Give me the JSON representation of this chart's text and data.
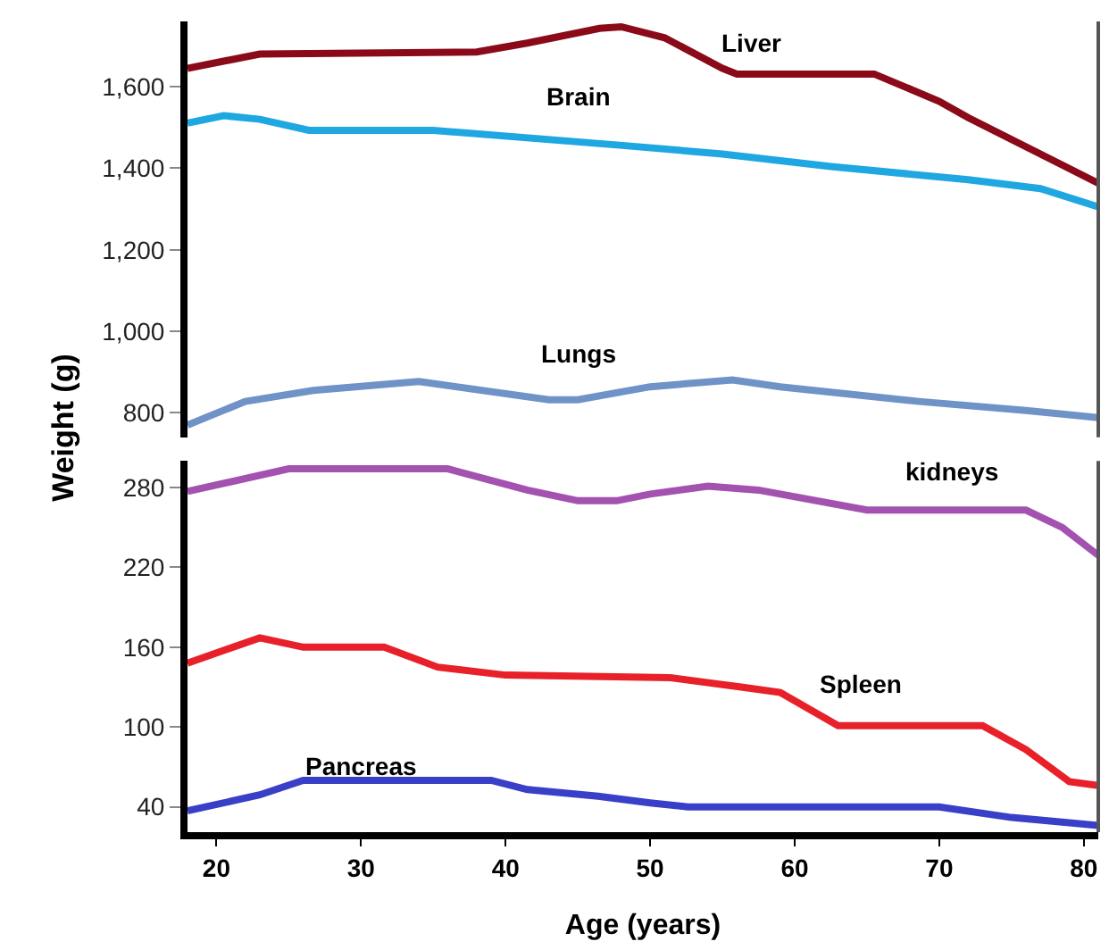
{
  "chart_data": [
    {
      "type": "line",
      "ylabel": "Weight (g)",
      "xlim": [
        18,
        81
      ],
      "ylim": [
        740,
        1760
      ],
      "yticks": [
        800,
        {
          "value": 1000,
          "label": "1,000"
        },
        {
          "value": 1200,
          "label": "1,200"
        },
        {
          "value": 1400,
          "label": "1,400"
        },
        {
          "value": 1600,
          "label": "1,600"
        }
      ],
      "tick_labels": "y",
      "legend": false,
      "marker": "none",
      "line_style": "solid",
      "series": [
        {
          "name": "Liver",
          "color": "#8b0a1a",
          "x": [
            18,
            23,
            38,
            41.5,
            46.5,
            48,
            51,
            55,
            56,
            65.5,
            70,
            72,
            78.5,
            81
          ],
          "values": [
            1645,
            1680,
            1685,
            1707,
            1743,
            1747,
            1720,
            1645,
            1631,
            1631,
            1564,
            1524,
            1408,
            1363
          ]
        },
        {
          "name": "Brain",
          "color": "#1ea7e1",
          "x": [
            18,
            20.5,
            23,
            26.4,
            35,
            47.7,
            55,
            62.5,
            72,
            77,
            81
          ],
          "values": [
            1511,
            1529,
            1520,
            1493,
            1493,
            1457,
            1435,
            1404,
            1372,
            1350,
            1305
          ]
        },
        {
          "name": "Lungs",
          "color": "#6f93c6",
          "x": [
            18,
            22,
            26.7,
            34,
            43,
            45,
            50,
            55.7,
            59,
            68.6,
            76,
            81
          ],
          "values": [
            770,
            828,
            855,
            877,
            832,
            832,
            864,
            881,
            864,
            828,
            806,
            788
          ]
        }
      ]
    },
    {
      "type": "line",
      "xlabel": "Age (years)",
      "xlim": [
        18,
        81
      ],
      "xticks": [
        20,
        30,
        40,
        50,
        60,
        70,
        80
      ],
      "ylim": [
        21,
        300
      ],
      "yticks": [
        40,
        100,
        160,
        220,
        280
      ],
      "legend": false,
      "marker": "none",
      "line_style": "solid",
      "series": [
        {
          "name": "kidneys",
          "color": "#a352b0",
          "x": [
            18,
            25,
            36,
            41.5,
            45,
            47.7,
            50,
            54,
            57.5,
            65,
            76,
            78.5,
            81
          ],
          "values": [
            277,
            294,
            294,
            278,
            270,
            270,
            275,
            281,
            278,
            263,
            263,
            250,
            229
          ]
        },
        {
          "name": "Spleen",
          "color": "#e8202a",
          "x": [
            18,
            23,
            26,
            31.6,
            35.3,
            40,
            51.4,
            56.3,
            59,
            63,
            73,
            76,
            79,
            81
          ],
          "values": [
            148,
            167,
            160,
            160,
            145,
            139,
            137,
            130,
            126,
            101,
            101,
            83,
            59,
            56
          ]
        },
        {
          "name": "Pancreas",
          "color": "#3a3fc8",
          "x": [
            18,
            23,
            26,
            39,
            41.5,
            46.4,
            50,
            52.6,
            70,
            75,
            81
          ],
          "values": [
            37,
            49,
            60,
            60,
            53,
            48,
            43,
            40,
            40,
            32,
            26
          ]
        }
      ]
    }
  ]
}
